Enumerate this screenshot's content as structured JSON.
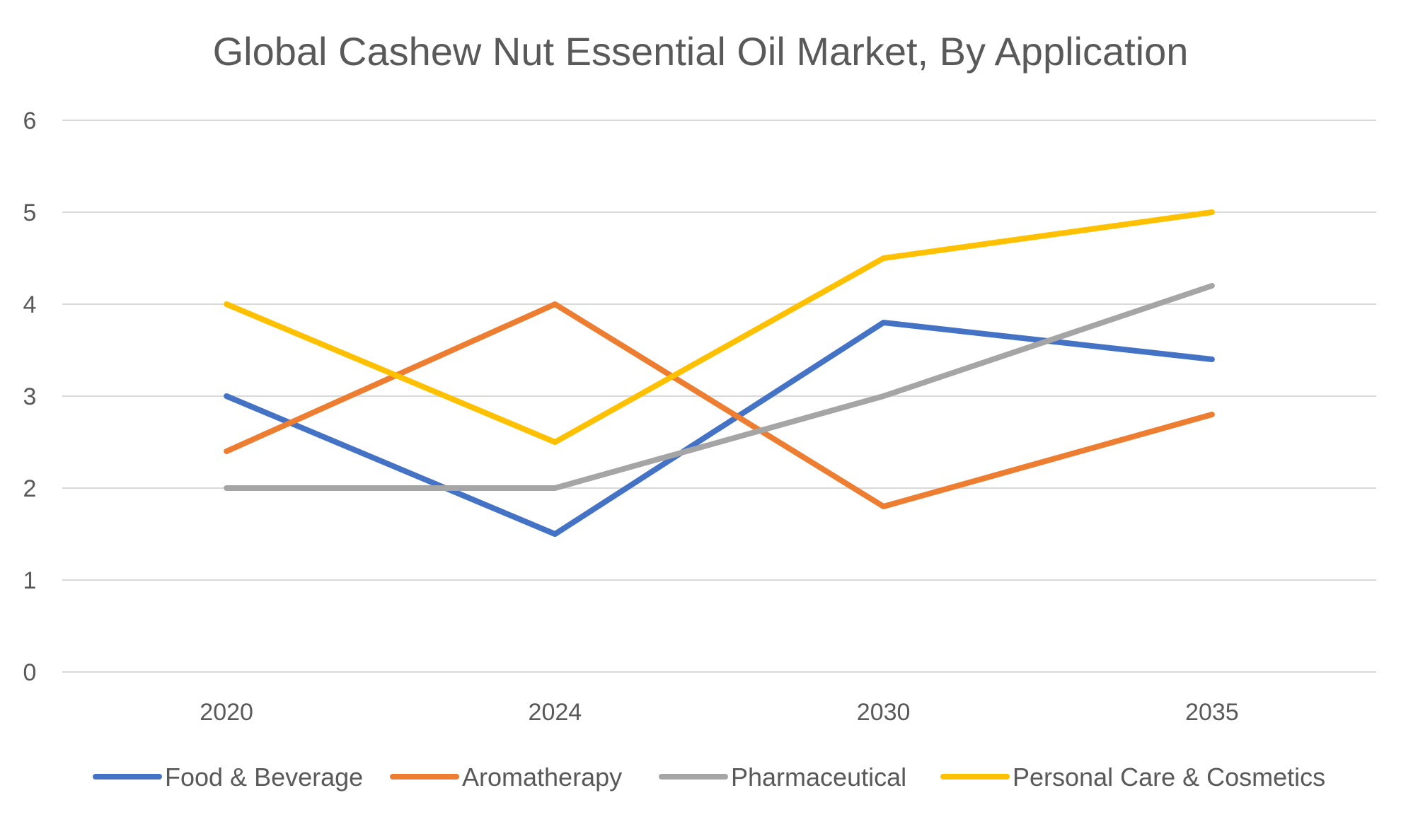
{
  "chart_data": {
    "type": "line",
    "title": "Global Cashew Nut Essential Oil Market, By Application",
    "xlabel": "",
    "ylabel": "",
    "categories": [
      "2020",
      "2024",
      "2030",
      "2035"
    ],
    "ylim": [
      0,
      6
    ],
    "yticks": [
      "0",
      "1",
      "2",
      "3",
      "4",
      "5",
      "6"
    ],
    "grid": true,
    "legend_position": "bottom",
    "series": [
      {
        "name": "Food & Beverage",
        "color": "#4472C4",
        "values": [
          3.0,
          1.5,
          3.8,
          3.4
        ]
      },
      {
        "name": "Aromatherapy",
        "color": "#ED7D31",
        "values": [
          2.4,
          4.0,
          1.8,
          2.8
        ]
      },
      {
        "name": "Pharmaceutical",
        "color": "#A5A5A5",
        "values": [
          2.0,
          2.0,
          3.0,
          4.2
        ]
      },
      {
        "name": "Personal Care & Cosmetics",
        "color": "#FFC000",
        "values": [
          4.0,
          2.5,
          4.5,
          5.0
        ]
      }
    ]
  }
}
